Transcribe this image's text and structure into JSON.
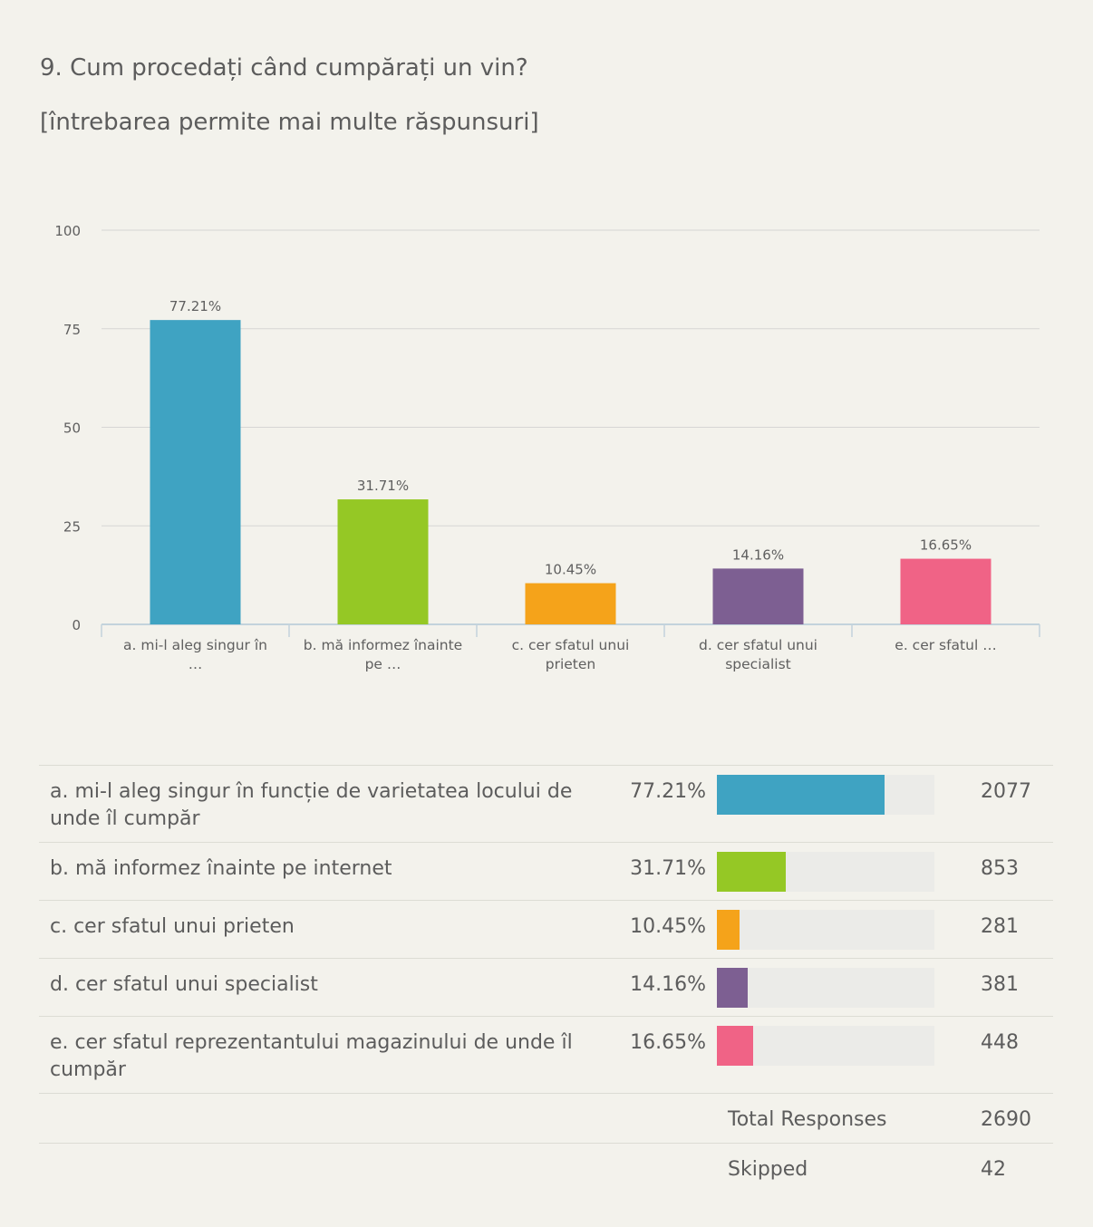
{
  "question": {
    "title": "9. Cum procedați când cumpărați un vin?",
    "subtitle": "[întrebarea permite mai multe răspunsuri]"
  },
  "chart_data": {
    "type": "bar",
    "categories": [
      [
        "a. mi-l aleg singur în",
        "…"
      ],
      [
        "b. mă informez înainte",
        "pe …"
      ],
      [
        "c. cer sfatul unui",
        "prieten"
      ],
      [
        "d. cer sfatul unui",
        "specialist"
      ],
      [
        "e. cer sfatul …"
      ]
    ],
    "values": [
      77.21,
      31.71,
      10.45,
      14.16,
      16.65
    ],
    "data_labels": [
      "77.21%",
      "31.71%",
      "10.45%",
      "14.16%",
      "16.65%"
    ],
    "colors": [
      "#3fa3c2",
      "#95c825",
      "#f5a31a",
      "#7d5f92",
      "#f06386"
    ],
    "ylim": [
      0,
      100
    ],
    "yticks": [
      0,
      25,
      50,
      75,
      100
    ],
    "grid": true,
    "title": "",
    "xlabel": "",
    "ylabel": ""
  },
  "table": {
    "rows": [
      {
        "label": "a. mi-l aleg singur în funcție de varietatea locului de unde îl cumpăr",
        "percent_text": "77.21%",
        "percent": 77.21,
        "count": "2077",
        "color": "#3fa3c2"
      },
      {
        "label": "b. mă informez înainte pe internet",
        "percent_text": "31.71%",
        "percent": 31.71,
        "count": "853",
        "color": "#95c825"
      },
      {
        "label": "c. cer sfatul unui prieten",
        "percent_text": "10.45%",
        "percent": 10.45,
        "count": "281",
        "color": "#f5a31a"
      },
      {
        "label": "d. cer sfatul unui specialist",
        "percent_text": "14.16%",
        "percent": 14.16,
        "count": "381",
        "color": "#7d5f92"
      },
      {
        "label": "e. cer sfatul reprezentantului magazinului de unde îl cumpăr",
        "percent_text": "16.65%",
        "percent": 16.65,
        "count": "448",
        "color": "#f06386"
      }
    ],
    "total_label": "Total Responses",
    "total_value": "2690",
    "skipped_label": "Skipped",
    "skipped_value": "42"
  }
}
